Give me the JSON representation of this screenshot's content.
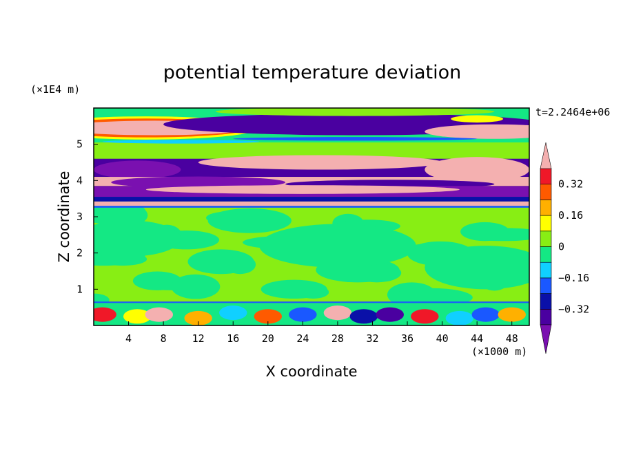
{
  "chart_data": {
    "type": "heatmap",
    "title": "potential temperature deviation",
    "xlabel": "X coordinate",
    "ylabel": "Z coordinate",
    "x_unit_label": "(×1000 m)",
    "y_unit_label": "(×1E4 m)",
    "time_label": "t=2.2464e+06",
    "x_ticks": [
      4,
      8,
      12,
      16,
      20,
      24,
      28,
      32,
      36,
      40,
      44,
      48
    ],
    "y_ticks": [
      1,
      2,
      3,
      4,
      5
    ],
    "xlim": [
      0,
      50
    ],
    "ylim": [
      0,
      6
    ],
    "colorbar": {
      "tick_labels": [
        "0.32",
        "0.16",
        "0",
        "−0.16",
        "−0.32"
      ],
      "tick_values": [
        0.32,
        0.16,
        0,
        -0.16,
        -0.32
      ],
      "levels": [
        -0.4,
        -0.32,
        -0.24,
        -0.16,
        -0.08,
        0,
        0.08,
        0.16,
        0.24,
        0.32,
        0.4
      ],
      "colors": [
        "#7a10b0",
        "#4a00a0",
        "#0a10a8",
        "#1a58ff",
        "#10d0ff",
        "#14e884",
        "#88ee14",
        "#ffff00",
        "#ffb000",
        "#ff5a00",
        "#f01828",
        "#f4b0b0"
      ]
    },
    "layers": [
      {
        "z_range": [
          5.1,
          6.0
        ],
        "dominant": "mixed: pink / purple / green (|dev| up to 0.4)"
      },
      {
        "z_range": [
          3.3,
          4.6
        ],
        "dominant": "alternating pink (+0.4) and purple (-0.4) bands"
      },
      {
        "z_range": [
          0.6,
          3.3
        ],
        "dominant": "green, near 0"
      },
      {
        "z_range": [
          0.0,
          0.6
        ],
        "dominant": "turbulent mix, -0.4 to +0.4"
      }
    ]
  }
}
